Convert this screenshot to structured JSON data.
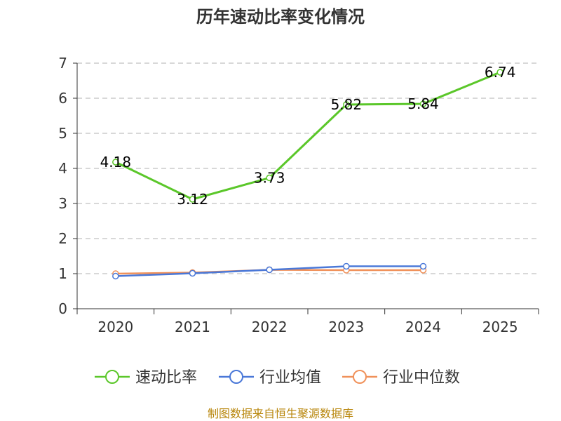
{
  "chart_data": {
    "type": "line",
    "title": "历年速动比率变化情况",
    "categories": [
      "2020",
      "2021",
      "2022",
      "2023",
      "2024",
      "2025"
    ],
    "ylim": [
      0,
      7
    ],
    "yticks": [
      "0",
      "1",
      "2",
      "3",
      "4",
      "5",
      "6",
      "7"
    ],
    "grid": true,
    "legend_position": "bottom",
    "series": [
      {
        "name": "速动比率",
        "color": "#5bc72a",
        "values": [
          4.18,
          3.12,
          3.73,
          5.82,
          5.84,
          6.74
        ],
        "labels": [
          "4.18",
          "3.12",
          "3.73",
          "5.82",
          "5.84",
          "6.74"
        ]
      },
      {
        "name": "行业均值",
        "color": "#4a78d8",
        "values": [
          0.93,
          1.01,
          1.11,
          1.21,
          1.21,
          null
        ]
      },
      {
        "name": "行业中位数",
        "color": "#f0915a",
        "values": [
          1.0,
          1.03,
          1.11,
          1.1,
          1.1,
          null
        ]
      }
    ],
    "source": "制图数据来自恒生聚源数据库"
  }
}
